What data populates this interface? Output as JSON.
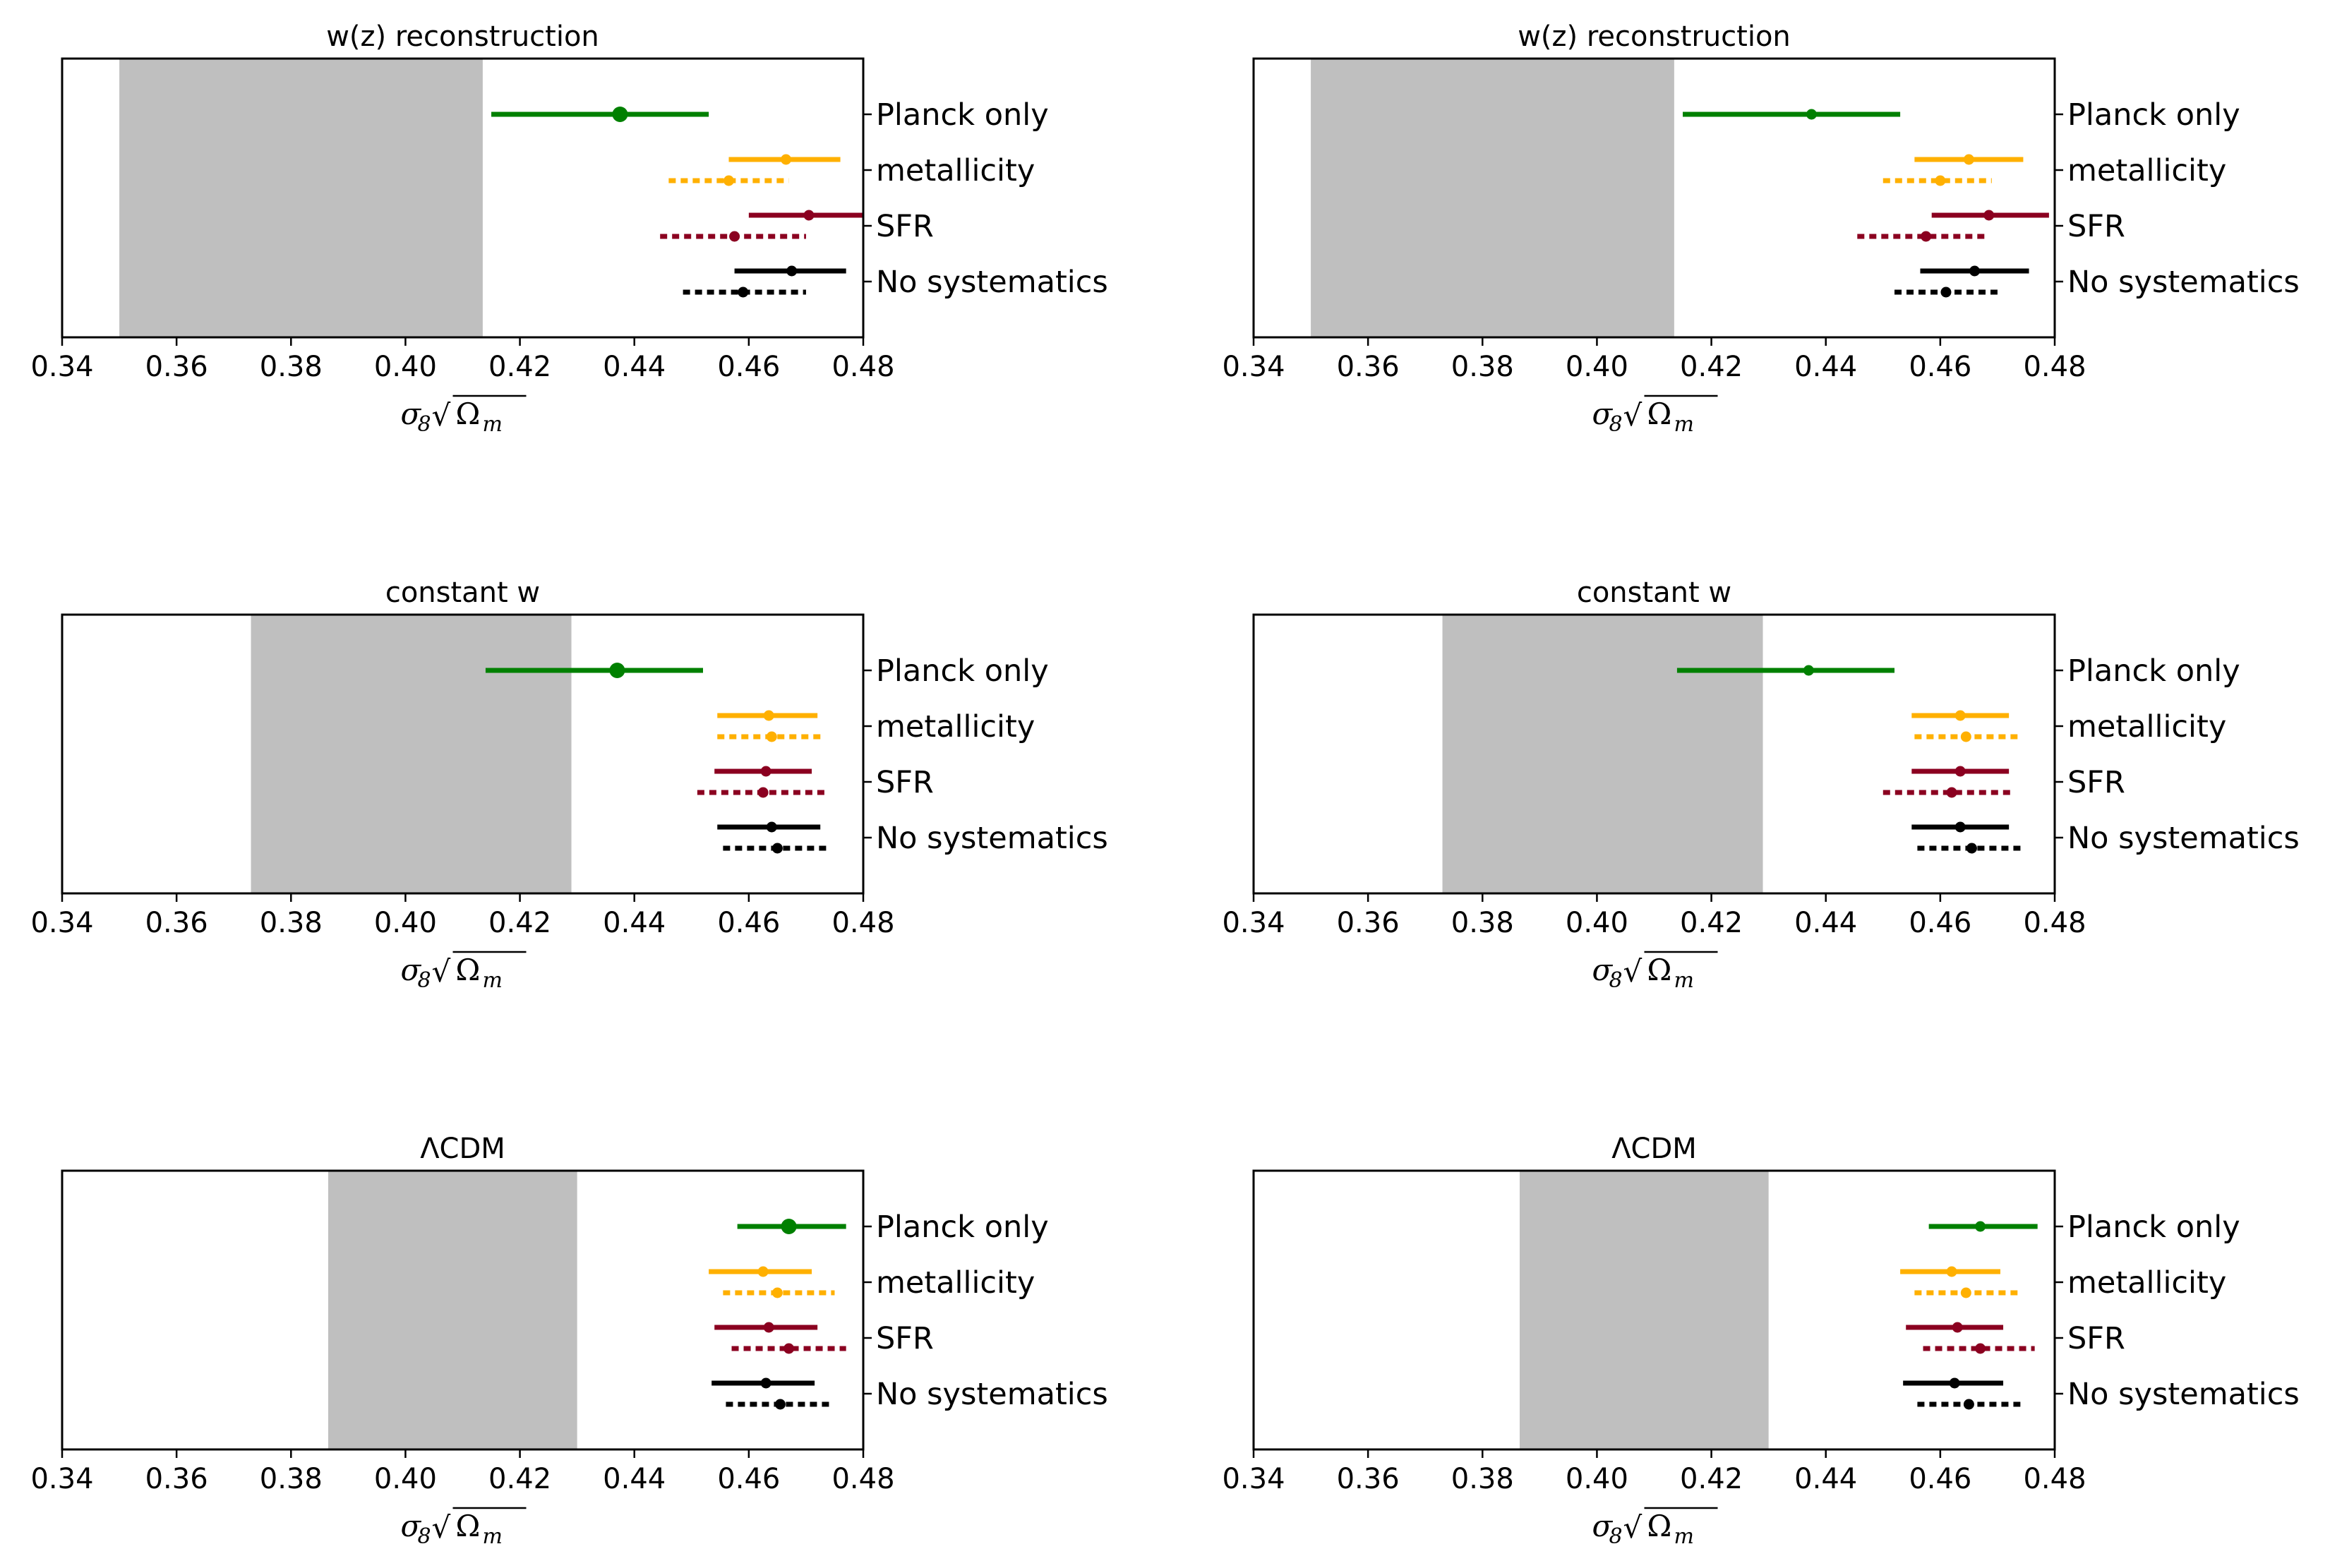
{
  "colors": {
    "planck": "#008000",
    "metallicity": "#FFB000",
    "sfr": "#8B0020",
    "nosys": "#000000",
    "band": "#BFBFBF"
  },
  "chart_data": [
    {
      "type": "errorbar",
      "title": "w(z) reconstruction",
      "xlabel": "σ8√Ωm",
      "xlim": [
        0.34,
        0.48
      ],
      "xticks": [
        "0.34",
        "0.36",
        "0.38",
        "0.40",
        "0.42",
        "0.44",
        "0.46",
        "0.48"
      ],
      "band": [
        0.35,
        0.4135
      ],
      "rows": [
        "Planck only",
        "metallicity",
        "SFR",
        "No systematics"
      ],
      "series": [
        {
          "name": "Planck only",
          "color": "planck",
          "style": "solid",
          "row": 0,
          "offset": 0,
          "center": 0.4375,
          "lo": 0.415,
          "hi": 0.453,
          "big": true
        },
        {
          "name": "metallicity",
          "color": "metallicity",
          "style": "solid",
          "row": 1,
          "offset": -1,
          "center": 0.4665,
          "lo": 0.4565,
          "hi": 0.476,
          "big": false
        },
        {
          "name": "metallicity",
          "color": "metallicity",
          "style": "dotted",
          "row": 1,
          "offset": 1,
          "center": 0.4565,
          "lo": 0.446,
          "hi": 0.467,
          "big": false
        },
        {
          "name": "SFR",
          "color": "sfr",
          "style": "solid",
          "row": 2,
          "offset": -1,
          "center": 0.4705,
          "lo": 0.46,
          "hi": 0.48,
          "big": false
        },
        {
          "name": "SFR",
          "color": "sfr",
          "style": "dotted",
          "row": 2,
          "offset": 1,
          "center": 0.4575,
          "lo": 0.4445,
          "hi": 0.47,
          "big": false
        },
        {
          "name": "No systematics",
          "color": "nosys",
          "style": "solid",
          "row": 3,
          "offset": -1,
          "center": 0.4675,
          "lo": 0.4575,
          "hi": 0.477,
          "big": false
        },
        {
          "name": "No systematics",
          "color": "nosys",
          "style": "dotted",
          "row": 3,
          "offset": 1,
          "center": 0.459,
          "lo": 0.4485,
          "hi": 0.47,
          "big": false
        }
      ]
    },
    {
      "type": "errorbar",
      "title": "w(z) reconstruction",
      "xlabel": "σ8√Ωm",
      "xlim": [
        0.34,
        0.48
      ],
      "xticks": [
        "0.34",
        "0.36",
        "0.38",
        "0.40",
        "0.42",
        "0.44",
        "0.46",
        "0.48"
      ],
      "band": [
        0.35,
        0.4135
      ],
      "rows": [
        "Planck only",
        "metallicity",
        "SFR",
        "No systematics"
      ],
      "series": [
        {
          "name": "Planck only",
          "color": "planck",
          "style": "solid",
          "row": 0,
          "offset": 0,
          "center": 0.4375,
          "lo": 0.415,
          "hi": 0.453,
          "big": false
        },
        {
          "name": "metallicity",
          "color": "metallicity",
          "style": "solid",
          "row": 1,
          "offset": -1,
          "center": 0.465,
          "lo": 0.4555,
          "hi": 0.4745,
          "big": false
        },
        {
          "name": "metallicity",
          "color": "metallicity",
          "style": "dotted",
          "row": 1,
          "offset": 1,
          "center": 0.46,
          "lo": 0.45,
          "hi": 0.469,
          "big": false
        },
        {
          "name": "SFR",
          "color": "sfr",
          "style": "solid",
          "row": 2,
          "offset": -1,
          "center": 0.4685,
          "lo": 0.4585,
          "hi": 0.479,
          "big": false
        },
        {
          "name": "SFR",
          "color": "sfr",
          "style": "dotted",
          "row": 2,
          "offset": 1,
          "center": 0.4575,
          "lo": 0.4455,
          "hi": 0.4685,
          "big": false
        },
        {
          "name": "No systematics",
          "color": "nosys",
          "style": "solid",
          "row": 3,
          "offset": -1,
          "center": 0.466,
          "lo": 0.4565,
          "hi": 0.4755,
          "big": false
        },
        {
          "name": "No systematics",
          "color": "nosys",
          "style": "dotted",
          "row": 3,
          "offset": 1,
          "center": 0.461,
          "lo": 0.452,
          "hi": 0.47,
          "big": false
        }
      ]
    },
    {
      "type": "errorbar",
      "title": "constant w",
      "xlabel": "σ8√Ωm",
      "xlim": [
        0.34,
        0.48
      ],
      "xticks": [
        "0.34",
        "0.36",
        "0.38",
        "0.40",
        "0.42",
        "0.44",
        "0.46",
        "0.48"
      ],
      "band": [
        0.373,
        0.429
      ],
      "rows": [
        "Planck only",
        "metallicity",
        "SFR",
        "No systematics"
      ],
      "series": [
        {
          "name": "Planck only",
          "color": "planck",
          "style": "solid",
          "row": 0,
          "offset": 0,
          "center": 0.437,
          "lo": 0.414,
          "hi": 0.452,
          "big": true
        },
        {
          "name": "metallicity",
          "color": "metallicity",
          "style": "solid",
          "row": 1,
          "offset": -1,
          "center": 0.4635,
          "lo": 0.4545,
          "hi": 0.472,
          "big": false
        },
        {
          "name": "metallicity",
          "color": "metallicity",
          "style": "dotted",
          "row": 1,
          "offset": 1,
          "center": 0.464,
          "lo": 0.4545,
          "hi": 0.473,
          "big": false
        },
        {
          "name": "SFR",
          "color": "sfr",
          "style": "solid",
          "row": 2,
          "offset": -1,
          "center": 0.463,
          "lo": 0.454,
          "hi": 0.471,
          "big": false
        },
        {
          "name": "SFR",
          "color": "sfr",
          "style": "dotted",
          "row": 2,
          "offset": 1,
          "center": 0.4625,
          "lo": 0.451,
          "hi": 0.474,
          "big": false
        },
        {
          "name": "No systematics",
          "color": "nosys",
          "style": "solid",
          "row": 3,
          "offset": -1,
          "center": 0.464,
          "lo": 0.4545,
          "hi": 0.4725,
          "big": false
        },
        {
          "name": "No systematics",
          "color": "nosys",
          "style": "dotted",
          "row": 3,
          "offset": 1,
          "center": 0.465,
          "lo": 0.4555,
          "hi": 0.474,
          "big": false
        }
      ]
    },
    {
      "type": "errorbar",
      "title": "constant w",
      "xlabel": "σ8√Ωm",
      "xlim": [
        0.34,
        0.48
      ],
      "xticks": [
        "0.34",
        "0.36",
        "0.38",
        "0.40",
        "0.42",
        "0.44",
        "0.46",
        "0.48"
      ],
      "band": [
        0.373,
        0.429
      ],
      "rows": [
        "Planck only",
        "metallicity",
        "SFR",
        "No systematics"
      ],
      "series": [
        {
          "name": "Planck only",
          "color": "planck",
          "style": "solid",
          "row": 0,
          "offset": 0,
          "center": 0.437,
          "lo": 0.414,
          "hi": 0.452,
          "big": false
        },
        {
          "name": "metallicity",
          "color": "metallicity",
          "style": "solid",
          "row": 1,
          "offset": -1,
          "center": 0.4635,
          "lo": 0.455,
          "hi": 0.472,
          "big": false
        },
        {
          "name": "metallicity",
          "color": "metallicity",
          "style": "dotted",
          "row": 1,
          "offset": 1,
          "center": 0.4645,
          "lo": 0.4555,
          "hi": 0.4735,
          "big": false
        },
        {
          "name": "SFR",
          "color": "sfr",
          "style": "solid",
          "row": 2,
          "offset": -1,
          "center": 0.4635,
          "lo": 0.455,
          "hi": 0.472,
          "big": false
        },
        {
          "name": "SFR",
          "color": "sfr",
          "style": "dotted",
          "row": 2,
          "offset": 1,
          "center": 0.462,
          "lo": 0.45,
          "hi": 0.473,
          "big": false
        },
        {
          "name": "No systematics",
          "color": "nosys",
          "style": "solid",
          "row": 3,
          "offset": -1,
          "center": 0.4635,
          "lo": 0.455,
          "hi": 0.472,
          "big": false
        },
        {
          "name": "No systematics",
          "color": "nosys",
          "style": "dotted",
          "row": 3,
          "offset": 1,
          "center": 0.4655,
          "lo": 0.456,
          "hi": 0.4745,
          "big": false
        }
      ]
    },
    {
      "type": "errorbar",
      "title": "ΛCDM",
      "xlabel": "σ8√Ωm",
      "xlim": [
        0.34,
        0.48
      ],
      "xticks": [
        "0.34",
        "0.36",
        "0.38",
        "0.40",
        "0.42",
        "0.44",
        "0.46",
        "0.48"
      ],
      "band": [
        0.3865,
        0.43
      ],
      "rows": [
        "Planck only",
        "metallicity",
        "SFR",
        "No systematics"
      ],
      "series": [
        {
          "name": "Planck only",
          "color": "planck",
          "style": "solid",
          "row": 0,
          "offset": 0,
          "center": 0.467,
          "lo": 0.458,
          "hi": 0.477,
          "big": true
        },
        {
          "name": "metallicity",
          "color": "metallicity",
          "style": "solid",
          "row": 1,
          "offset": -1,
          "center": 0.4625,
          "lo": 0.453,
          "hi": 0.471,
          "big": false
        },
        {
          "name": "metallicity",
          "color": "metallicity",
          "style": "dotted",
          "row": 1,
          "offset": 1,
          "center": 0.465,
          "lo": 0.4555,
          "hi": 0.475,
          "big": false
        },
        {
          "name": "SFR",
          "color": "sfr",
          "style": "solid",
          "row": 2,
          "offset": -1,
          "center": 0.4635,
          "lo": 0.454,
          "hi": 0.472,
          "big": false
        },
        {
          "name": "SFR",
          "color": "sfr",
          "style": "dotted",
          "row": 2,
          "offset": 1,
          "center": 0.467,
          "lo": 0.457,
          "hi": 0.477,
          "big": false
        },
        {
          "name": "No systematics",
          "color": "nosys",
          "style": "solid",
          "row": 3,
          "offset": -1,
          "center": 0.463,
          "lo": 0.4535,
          "hi": 0.4715,
          "big": false
        },
        {
          "name": "No systematics",
          "color": "nosys",
          "style": "dotted",
          "row": 3,
          "offset": 1,
          "center": 0.4655,
          "lo": 0.456,
          "hi": 0.4745,
          "big": false
        }
      ]
    },
    {
      "type": "errorbar",
      "title": "ΛCDM",
      "xlabel": "σ8√Ωm",
      "xlim": [
        0.34,
        0.48
      ],
      "xticks": [
        "0.34",
        "0.36",
        "0.38",
        "0.40",
        "0.42",
        "0.44",
        "0.46",
        "0.48"
      ],
      "band": [
        0.3865,
        0.43
      ],
      "rows": [
        "Planck only",
        "metallicity",
        "SFR",
        "No systematics"
      ],
      "series": [
        {
          "name": "Planck only",
          "color": "planck",
          "style": "solid",
          "row": 0,
          "offset": 0,
          "center": 0.467,
          "lo": 0.458,
          "hi": 0.477,
          "big": false
        },
        {
          "name": "metallicity",
          "color": "metallicity",
          "style": "solid",
          "row": 1,
          "offset": -1,
          "center": 0.462,
          "lo": 0.453,
          "hi": 0.4705,
          "big": false
        },
        {
          "name": "metallicity",
          "color": "metallicity",
          "style": "dotted",
          "row": 1,
          "offset": 1,
          "center": 0.4645,
          "lo": 0.4555,
          "hi": 0.4735,
          "big": false
        },
        {
          "name": "SFR",
          "color": "sfr",
          "style": "solid",
          "row": 2,
          "offset": -1,
          "center": 0.463,
          "lo": 0.454,
          "hi": 0.471,
          "big": false
        },
        {
          "name": "SFR",
          "color": "sfr",
          "style": "dotted",
          "row": 2,
          "offset": 1,
          "center": 0.467,
          "lo": 0.457,
          "hi": 0.4765,
          "big": false
        },
        {
          "name": "No systematics",
          "color": "nosys",
          "style": "solid",
          "row": 3,
          "offset": -1,
          "center": 0.4625,
          "lo": 0.4535,
          "hi": 0.471,
          "big": false
        },
        {
          "name": "No systematics",
          "color": "nosys",
          "style": "dotted",
          "row": 3,
          "offset": 1,
          "center": 0.465,
          "lo": 0.456,
          "hi": 0.474,
          "big": false
        }
      ]
    }
  ]
}
